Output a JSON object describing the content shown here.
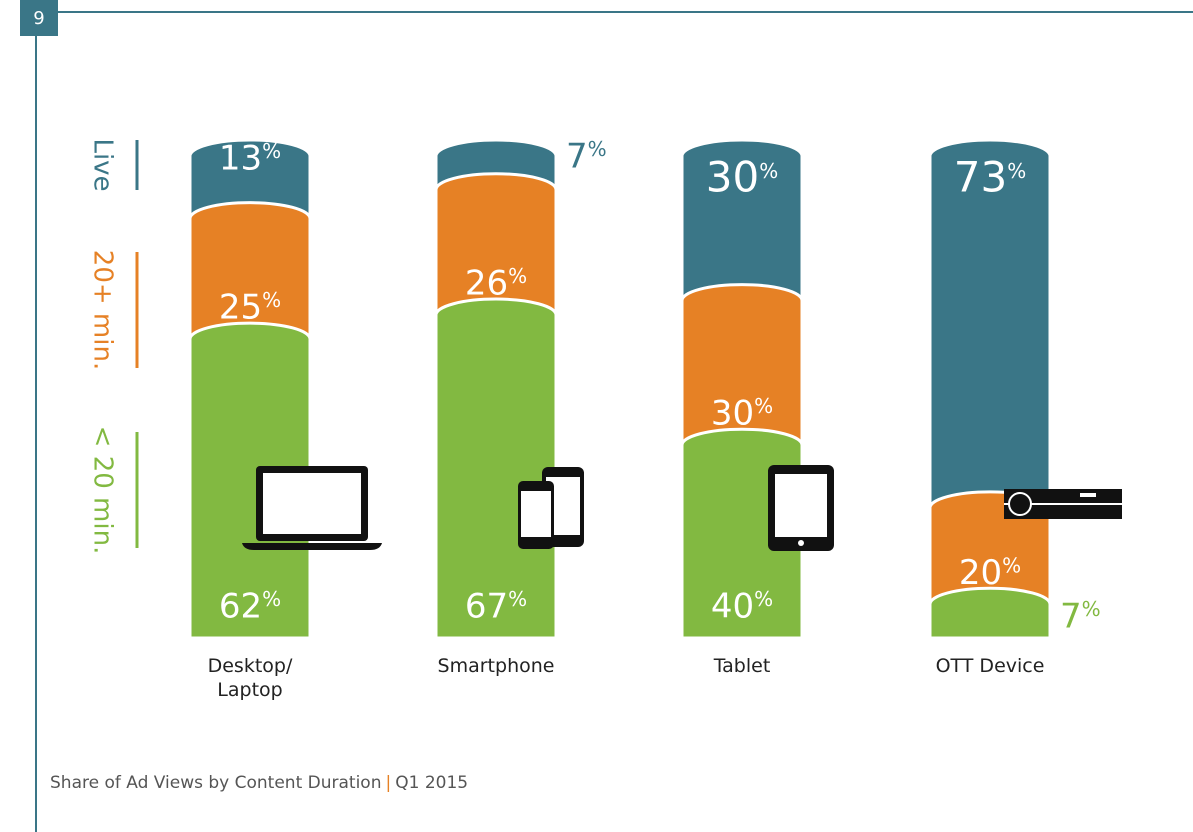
{
  "page_number": "9",
  "chart_data": {
    "type": "stacked-bar",
    "title": "Share of Ad Views by Content Duration",
    "separator": "|",
    "subtitle": "Q1 2015",
    "categories": [
      "Desktop/\nLaptop",
      "Smartphone",
      "Tablet",
      "OTT Device"
    ],
    "ylim": [
      0,
      100
    ],
    "series": [
      {
        "name": "Live",
        "color": "#3a7687",
        "values": [
          13,
          7,
          30,
          73
        ],
        "value_labels": [
          "13%",
          "7%",
          "30%",
          "73%"
        ]
      },
      {
        "name": "20+ min.",
        "color": "#e68125",
        "values": [
          25,
          26,
          30,
          20
        ],
        "value_labels": [
          "25%",
          "26%",
          "30%",
          "20%"
        ]
      },
      {
        "name": "< 20 min.",
        "color": "#82b941",
        "values": [
          62,
          67,
          40,
          7
        ],
        "value_labels": [
          "62%",
          "67%",
          "40%",
          "7%"
        ]
      }
    ]
  }
}
